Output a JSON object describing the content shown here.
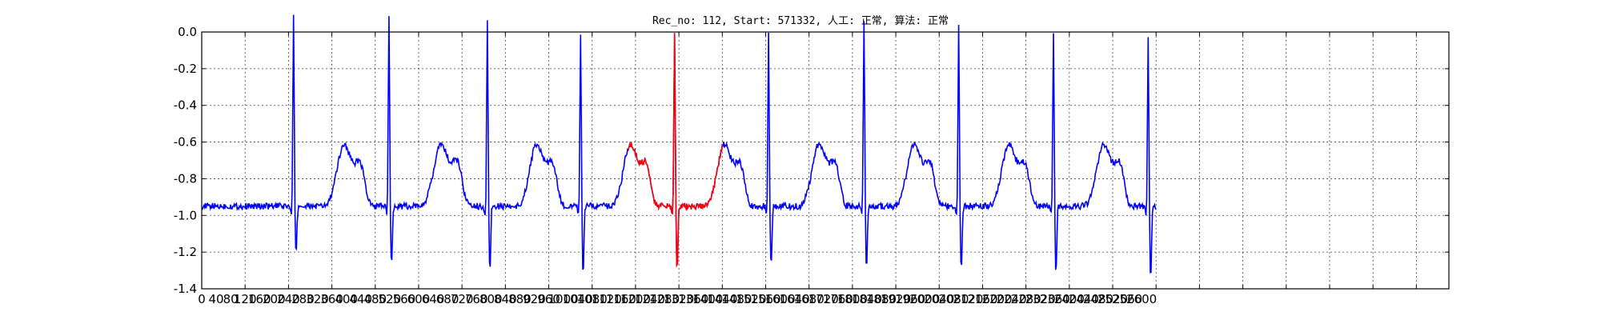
{
  "chart_data": {
    "type": "line",
    "title": "Rec_no: 112, Start: 571332, 人工: 正常, 算法: 正常",
    "xlabel": "",
    "ylabel": "",
    "xlim": [
      0,
      3450
    ],
    "ylim": [
      -1.4,
      0.0
    ],
    "grid": true,
    "y_ticks": [
      0.0,
      -0.2,
      -0.4,
      -0.6,
      -0.8,
      -1.0,
      -1.2,
      -1.4
    ],
    "y_tick_labels": [
      "0.0",
      "-0.2",
      "-0.4",
      "-0.6",
      "-0.8",
      "-1.0",
      "-1.2",
      "-1.4"
    ],
    "x_ticks": [
      0,
      40,
      80,
      120,
      160,
      200,
      240,
      280,
      320,
      360,
      400,
      440,
      480,
      520,
      560,
      600,
      640,
      680,
      720,
      760,
      800,
      840,
      880,
      920,
      960,
      1000,
      1040,
      1080,
      1120,
      1160,
      1200,
      1240,
      1280,
      1320,
      1360,
      1400,
      1440,
      1480,
      1520,
      1560,
      1600,
      1640,
      1680,
      1720,
      1760,
      1800,
      1840,
      1880,
      1920,
      1960,
      2000,
      2040,
      2080,
      2120,
      2160,
      2200,
      2240,
      2280,
      2320,
      2360,
      2400,
      2440,
      2480,
      2520,
      2560,
      2600
    ],
    "x_tick_labels": [
      "0",
      "40",
      "80",
      "120",
      "160",
      "200",
      "240",
      "280",
      "320",
      "360",
      "400",
      "440",
      "480",
      "520",
      "560",
      "600",
      "640",
      "680",
      "720",
      "760",
      "800",
      "840",
      "880",
      "920",
      "960",
      "1000",
      "1040",
      "1080",
      "1120",
      "1160",
      "1200",
      "1240",
      "1280",
      "1320",
      "1360",
      "1400",
      "1440",
      "1480",
      "1520",
      "1560",
      "1600",
      "1640",
      "1680",
      "1720",
      "1760",
      "1800",
      "1840",
      "1880",
      "1920",
      "1960",
      "2000",
      "2040",
      "2080",
      "2120",
      "2160",
      "2200",
      "2240",
      "2280",
      "2320",
      "2360",
      "2400",
      "2440",
      "2480",
      "2520",
      "2560",
      "2600"
    ],
    "x_grid_step": 120,
    "beat_r_peaks": [
      {
        "x": 254,
        "peak": -0.02,
        "trough": -1.21
      },
      {
        "x": 518,
        "peak": 0.0,
        "trough": -1.27
      },
      {
        "x": 790,
        "peak": -0.02,
        "trough": -1.3
      },
      {
        "x": 1048,
        "peak": -0.11,
        "trough": -1.32
      },
      {
        "x": 1308,
        "peak": -0.09,
        "trough": -1.29
      },
      {
        "x": 1568,
        "peak": -0.11,
        "trough": -1.28
      },
      {
        "x": 1832,
        "peak": -0.05,
        "trough": -1.28
      },
      {
        "x": 2094,
        "peak": -0.06,
        "trough": -1.29
      },
      {
        "x": 2356,
        "peak": -0.09,
        "trough": -1.32
      },
      {
        "x": 2618,
        "peak": -0.13,
        "trough": -1.34
      }
    ],
    "baseline": -0.95,
    "t_wave_level": -0.66,
    "series": [
      {
        "color": "#0000ff",
        "x_range": [
          0,
          2640
        ]
      },
      {
        "color": "#ff0000",
        "x_range": [
          1180,
          1440
        ]
      }
    ]
  }
}
